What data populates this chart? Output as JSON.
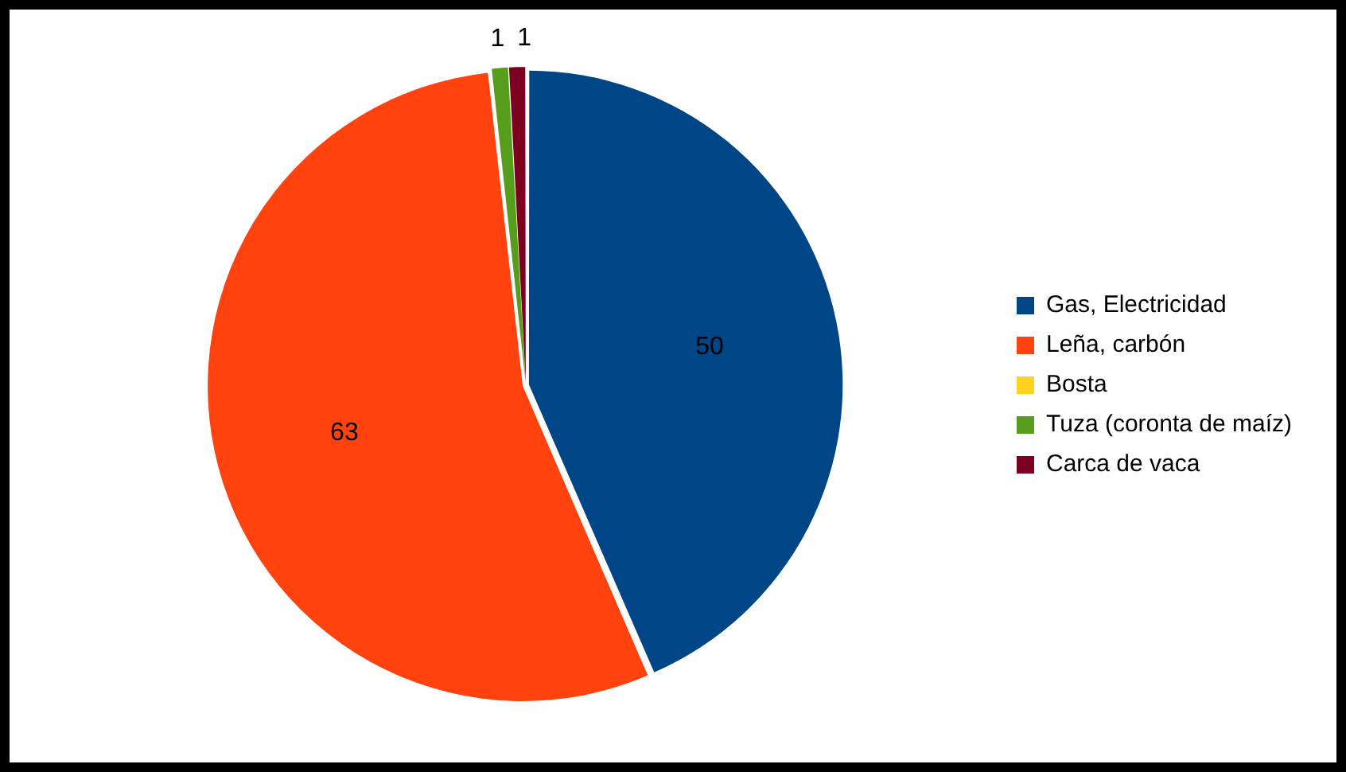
{
  "chart_data": {
    "type": "pie",
    "categories": [
      "Gas, Electricidad",
      "Leña, carbón",
      "Bosta",
      "Tuza (coronta de maíz)",
      "Carca de vaca"
    ],
    "values": [
      50,
      63,
      0,
      1,
      1
    ],
    "colors": [
      "#004586",
      "#ff420e",
      "#ffd320",
      "#579d1c",
      "#7e0021"
    ],
    "value_labels": [
      "50",
      "63",
      null,
      "1",
      "1"
    ],
    "legend": "right"
  }
}
